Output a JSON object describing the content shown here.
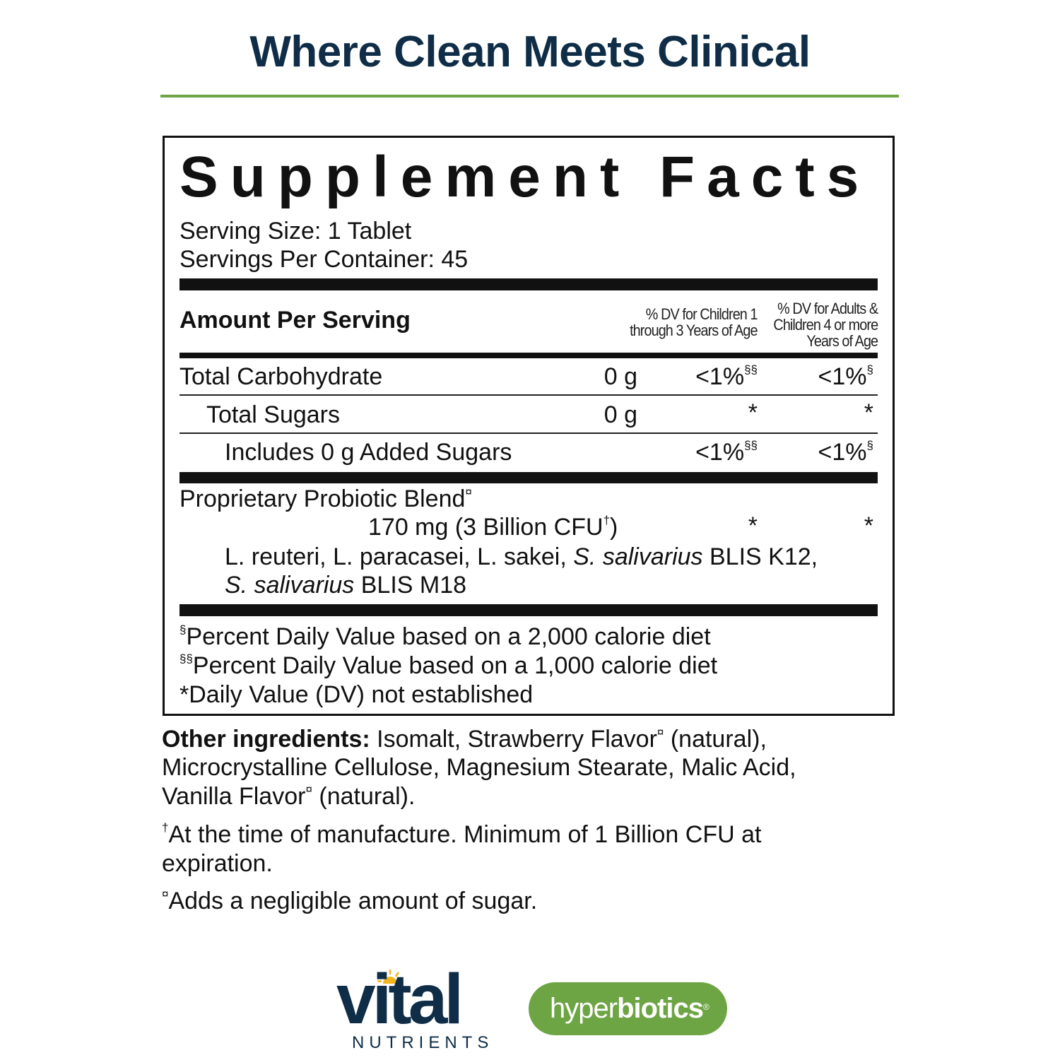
{
  "headline": "Where Clean Meets Clinical",
  "colors": {
    "headline": "#0f2d47",
    "accent_green": "#6ea544",
    "sun_yellow": "#f2b51c"
  },
  "facts": {
    "title": "Supplement Facts",
    "serving_size": "Serving Size: 1 Tablet",
    "servings_per_container": "Servings Per Container: 45",
    "amount_per_serving": "Amount Per Serving",
    "col_children": [
      "% DV for Children 1",
      "through 3 Years of Age"
    ],
    "col_adults": [
      "% DV for Adults &",
      "Children 4 or more",
      "Years of Age"
    ],
    "rows": [
      {
        "name": "Total Carbohydrate",
        "amount": "0 g",
        "dv_children": "<1%",
        "dv_children_mark": "§§",
        "dv_adults": "<1%",
        "dv_adults_mark": "§"
      },
      {
        "name": "Total Sugars",
        "amount": "0 g",
        "dv_children": "*",
        "dv_adults": "*"
      },
      {
        "name": "Includes 0 g Added Sugars",
        "amount": "",
        "dv_children": "<1%",
        "dv_children_mark": "§§",
        "dv_adults": "<1%",
        "dv_adults_mark": "§"
      }
    ],
    "blend": {
      "name": "Proprietary Probiotic Blend",
      "name_mark": "¤",
      "amount": "170 mg (3 Billion CFU",
      "amount_mark": "†",
      "amount_close": ")",
      "dv_children": "*",
      "dv_adults": "*",
      "strains_1a": "L. reuteri, L. paracasei, L. sakei, ",
      "strains_1b": "S. salivarius",
      "strains_1c": " BLIS K12,",
      "strains_2a": "S. salivarius",
      "strains_2b": " BLIS M18"
    },
    "footnotes": [
      {
        "mark": "§",
        "text": "Percent Daily Value based on a 2,000 calorie diet"
      },
      {
        "mark": "§§",
        "text": "Percent Daily Value based on a 1,000 calorie diet"
      },
      {
        "mark": "",
        "text": "*Daily Value (DV) not established"
      }
    ]
  },
  "other": {
    "label": "Other ingredients:",
    "line1a": " Isomalt, Strawberry Flavor",
    "mark": "¤",
    "line1b": " (natural),",
    "line2": "Microcrystalline Cellulose, Magnesium Stearate, Malic Acid,",
    "line3a": "Vanilla Flavor",
    "line3b": " (natural)."
  },
  "note_dagger": {
    "mark": "†",
    "line1": "At the time of manufacture. Minimum of 1 Billion CFU at",
    "line2": "expiration."
  },
  "note_sugar": {
    "mark": "¤",
    "text": "Adds a negligible amount of sugar."
  },
  "logos": {
    "vital_main": "vital",
    "vital_sub": "NUTRIENTS",
    "hyper_a": "hyper",
    "hyper_b": "biotics",
    "hyper_reg": "®"
  }
}
